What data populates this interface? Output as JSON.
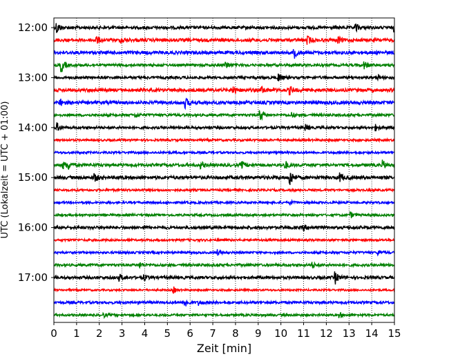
{
  "chart_data": {
    "type": "line",
    "chart_kind": "helicorder seismogram",
    "xlabel": "Zeit  [min]",
    "ylabel": "UTC (Lokalzeit = UTC + 01:00)",
    "xlim": [
      0,
      15
    ],
    "x_ticks": [
      "0",
      "1",
      "2",
      "3",
      "4",
      "5",
      "6",
      "7",
      "8",
      "9",
      "10",
      "11",
      "12",
      "13",
      "14",
      "15"
    ],
    "grid": "vertical dotted lines at each minute",
    "y_ticks": [
      {
        "row": 0,
        "label": "12:00"
      },
      {
        "row": 4,
        "label": "13:00"
      },
      {
        "row": 8,
        "label": "14:00"
      },
      {
        "row": 12,
        "label": "15:00"
      },
      {
        "row": 16,
        "label": "16:00"
      },
      {
        "row": 20,
        "label": "17:00"
      }
    ],
    "row_colors": [
      "#000000",
      "#ff0000",
      "#0000ff",
      "#008000"
    ],
    "rows": [
      {
        "start": "12:00",
        "noise": 0.8,
        "events": [
          [
            0.15,
            3.0
          ],
          [
            13.3,
            2.0
          ],
          [
            15.0,
            1.8
          ]
        ]
      },
      {
        "start": "12:15",
        "noise": 0.9,
        "events": [
          [
            1.9,
            1.8
          ],
          [
            3.0,
            1.5
          ],
          [
            11.2,
            2.0
          ],
          [
            12.5,
            2.0
          ]
        ]
      },
      {
        "start": "12:30",
        "noise": 0.9,
        "events": [
          [
            10.6,
            2.5
          ]
        ]
      },
      {
        "start": "12:45",
        "noise": 0.7,
        "events": [
          [
            0.35,
            3.5
          ],
          [
            7.6,
            1.8
          ],
          [
            13.7,
            2.0
          ]
        ]
      },
      {
        "start": "13:00",
        "noise": 0.7,
        "events": [
          [
            9.9,
            2.4
          ],
          [
            14.3,
            1.2
          ]
        ]
      },
      {
        "start": "13:15",
        "noise": 0.9,
        "events": [
          [
            7.9,
            2.8
          ],
          [
            9.2,
            1.6
          ],
          [
            10.4,
            2.2
          ]
        ]
      },
      {
        "start": "13:30",
        "noise": 0.9,
        "events": [
          [
            0.3,
            1.6
          ],
          [
            5.8,
            2.4
          ]
        ]
      },
      {
        "start": "13:45",
        "noise": 0.7,
        "events": [
          [
            3.6,
            1.2
          ],
          [
            9.1,
            3.0
          ],
          [
            10.5,
            1.2
          ]
        ]
      },
      {
        "start": "14:00",
        "noise": 0.7,
        "events": [
          [
            0.15,
            2.2
          ],
          [
            11.1,
            1.5
          ],
          [
            14.2,
            1.4
          ]
        ]
      },
      {
        "start": "14:15",
        "noise": 0.6,
        "events": []
      },
      {
        "start": "14:30",
        "noise": 0.6,
        "events": []
      },
      {
        "start": "14:45",
        "noise": 0.8,
        "events": [
          [
            0.4,
            2.2
          ],
          [
            0.6,
            2.6
          ],
          [
            6.5,
            1.5
          ],
          [
            8.3,
            1.8
          ],
          [
            10.2,
            2.2
          ],
          [
            14.5,
            2.2
          ]
        ]
      },
      {
        "start": "15:00",
        "noise": 0.9,
        "events": [
          [
            1.8,
            2.2
          ],
          [
            10.4,
            5.0
          ],
          [
            12.6,
            2.4
          ]
        ]
      },
      {
        "start": "15:15",
        "noise": 0.6,
        "events": []
      },
      {
        "start": "15:30",
        "noise": 0.6,
        "events": [
          [
            10.4,
            1.2
          ]
        ]
      },
      {
        "start": "15:45",
        "noise": 0.6,
        "events": [
          [
            13.1,
            1.3
          ]
        ]
      },
      {
        "start": "16:00",
        "noise": 0.8,
        "events": [
          [
            11.0,
            1.5
          ]
        ]
      },
      {
        "start": "16:15",
        "noise": 0.6,
        "events": []
      },
      {
        "start": "16:30",
        "noise": 0.6,
        "events": [
          [
            7.2,
            1.4
          ],
          [
            14.3,
            1.4
          ]
        ]
      },
      {
        "start": "16:45",
        "noise": 0.7,
        "events": [
          [
            3.8,
            1.4
          ],
          [
            11.4,
            1.3
          ]
        ]
      },
      {
        "start": "17:00",
        "noise": 0.8,
        "events": [
          [
            2.9,
            1.6
          ],
          [
            4.0,
            1.2
          ],
          [
            12.4,
            3.2
          ]
        ]
      },
      {
        "start": "17:15",
        "noise": 0.5,
        "events": [
          [
            5.3,
            1.5
          ]
        ]
      },
      {
        "start": "17:30",
        "noise": 0.7,
        "events": [
          [
            5.8,
            2.2
          ],
          [
            6.4,
            1.3
          ]
        ]
      },
      {
        "start": "17:45",
        "noise": 0.6,
        "events": [
          [
            2.2,
            1.0
          ],
          [
            12.6,
            1.2
          ]
        ]
      }
    ]
  }
}
